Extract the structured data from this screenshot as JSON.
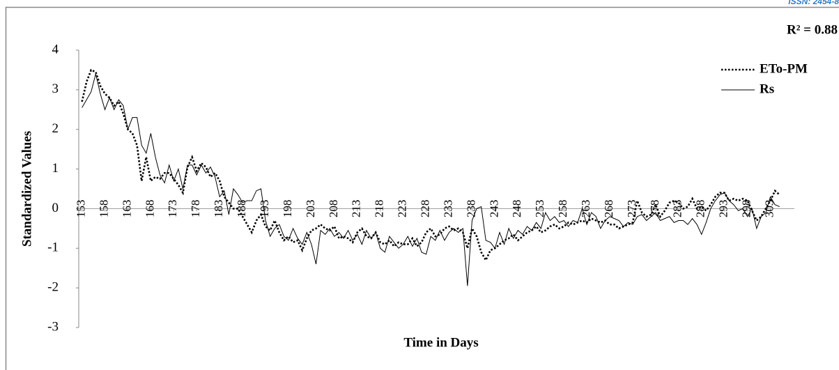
{
  "header": {
    "issn": "ISSN: 2454-8"
  },
  "chart_data": {
    "type": "line",
    "annotation": "R² = 0.88",
    "x_label": "Time in Days",
    "y_label": "Standardized Values",
    "x": [
      153,
      154,
      155,
      156,
      157,
      158,
      159,
      160,
      161,
      162,
      163,
      164,
      165,
      166,
      167,
      168,
      169,
      170,
      171,
      172,
      173,
      174,
      175,
      176,
      177,
      178,
      179,
      180,
      181,
      182,
      183,
      184,
      185,
      186,
      187,
      188,
      189,
      190,
      191,
      192,
      193,
      194,
      195,
      196,
      197,
      198,
      199,
      200,
      201,
      202,
      203,
      204,
      205,
      206,
      207,
      208,
      209,
      210,
      211,
      212,
      213,
      214,
      215,
      216,
      217,
      218,
      219,
      220,
      221,
      222,
      223,
      224,
      225,
      226,
      227,
      228,
      229,
      230,
      231,
      232,
      233,
      234,
      235,
      236,
      237,
      238,
      239,
      240,
      241,
      242,
      243,
      244,
      245,
      246,
      247,
      248,
      249,
      250,
      251,
      252,
      253,
      254,
      255,
      256,
      257,
      258,
      259,
      260,
      261,
      262,
      263,
      264,
      265,
      266,
      267,
      268,
      269,
      270,
      271,
      272,
      273,
      274,
      275,
      276,
      277,
      278,
      279,
      280,
      281,
      282,
      283,
      284,
      285,
      286,
      287,
      288,
      289,
      290,
      291,
      292,
      293,
      294,
      295,
      296,
      297,
      298,
      299,
      300,
      301,
      302,
      303,
      304,
      305
    ],
    "series": [
      {
        "name": "ETo-PM",
        "color": "#000000",
        "style": "dotted",
        "values": [
          2.7,
          3.2,
          3.5,
          3.45,
          3.1,
          2.9,
          2.8,
          2.6,
          2.7,
          2.4,
          2.0,
          1.9,
          1.6,
          0.7,
          1.3,
          0.7,
          0.8,
          0.75,
          0.9,
          0.9,
          0.75,
          0.6,
          0.4,
          1.05,
          1.3,
          0.95,
          1.15,
          1.05,
          0.8,
          0.9,
          0.7,
          0.3,
          0.15,
          0.0,
          0.0,
          -0.2,
          -0.4,
          -0.6,
          -0.3,
          -0.15,
          -0.45,
          -0.55,
          -0.3,
          -0.6,
          -0.8,
          -0.7,
          -0.85,
          -0.8,
          -1.05,
          -0.75,
          -0.55,
          -0.5,
          -0.4,
          -0.5,
          -0.55,
          -0.45,
          -0.75,
          -0.7,
          -0.75,
          -0.85,
          -0.6,
          -0.5,
          -0.7,
          -0.75,
          -0.6,
          -0.85,
          -0.9,
          -0.8,
          -0.95,
          -0.85,
          -0.9,
          -0.9,
          -0.75,
          -0.95,
          -0.85,
          -0.6,
          -0.5,
          -0.7,
          -0.65,
          -0.5,
          -0.45,
          -0.55,
          -0.5,
          -0.6,
          -1.0,
          -0.5,
          -0.7,
          -1.1,
          -1.3,
          -1.05,
          -1.0,
          -0.9,
          -0.8,
          -0.75,
          -0.65,
          -0.8,
          -0.7,
          -0.6,
          -0.55,
          -0.45,
          -0.6,
          -0.55,
          -0.45,
          -0.4,
          -0.5,
          -0.45,
          -0.35,
          -0.4,
          -0.35,
          -0.3,
          -0.35,
          -0.25,
          -0.3,
          -0.35,
          -0.3,
          -0.4,
          -0.4,
          -0.5,
          -0.45,
          -0.4,
          -0.35,
          0.2,
          -0.1,
          -0.2,
          -0.15,
          0.1,
          -0.2,
          -0.05,
          0.15,
          0.2,
          0.15,
          0.0,
          0.05,
          0.25,
          0.0,
          0.05,
          -0.05,
          0.1,
          0.3,
          0.4,
          0.4,
          0.2,
          0.25,
          0.2,
          0.25,
          0.2,
          -0.05,
          -0.3,
          -0.2,
          0.0,
          0.2,
          0.45,
          0.35
        ]
      },
      {
        "name": "Rs",
        "color": "#000000",
        "style": "solid",
        "values": [
          2.55,
          2.75,
          2.95,
          3.4,
          2.9,
          2.5,
          2.8,
          2.5,
          2.75,
          2.6,
          2.0,
          2.3,
          2.3,
          1.6,
          1.4,
          1.9,
          1.3,
          0.85,
          0.65,
          1.1,
          0.7,
          1.0,
          0.5,
          1.1,
          1.1,
          0.85,
          1.1,
          0.9,
          1.05,
          0.8,
          0.3,
          0.45,
          -0.15,
          0.5,
          0.35,
          0.15,
          0.2,
          0.2,
          0.45,
          0.5,
          -0.3,
          -0.7,
          -0.5,
          -0.4,
          -0.7,
          -0.8,
          -0.5,
          -0.75,
          -0.9,
          -0.6,
          -0.9,
          -1.4,
          -0.55,
          -0.65,
          -0.5,
          -0.7,
          -0.6,
          -0.75,
          -0.55,
          -0.8,
          -0.65,
          -0.9,
          -0.55,
          -0.75,
          -0.6,
          -1.0,
          -1.1,
          -0.7,
          -0.85,
          -1.0,
          -0.9,
          -0.7,
          -0.95,
          -0.75,
          -1.1,
          -1.15,
          -0.7,
          -0.8,
          -0.55,
          -0.8,
          -0.6,
          -0.5,
          -0.6,
          -0.5,
          -1.95,
          -0.3,
          0.0,
          0.05,
          -0.8,
          -0.85,
          -1.0,
          -0.6,
          -0.9,
          -0.5,
          -0.75,
          -0.55,
          -0.65,
          -0.45,
          -0.55,
          -0.35,
          -0.5,
          -0.1,
          -0.3,
          -0.2,
          -0.35,
          -0.3,
          -0.45,
          -0.3,
          -0.35,
          0.0,
          -0.4,
          -0.1,
          -0.2,
          -0.5,
          -0.3,
          -0.2,
          -0.25,
          -0.3,
          -0.45,
          -0.35,
          -0.4,
          -0.2,
          -0.15,
          -0.3,
          -0.2,
          -0.1,
          -0.3,
          -0.25,
          -0.2,
          -0.35,
          -0.3,
          -0.3,
          -0.4,
          -0.25,
          -0.4,
          -0.65,
          -0.35,
          0.0,
          0.2,
          0.35,
          0.4,
          0.2,
          0.1,
          -0.05,
          0.0,
          -0.2,
          0.0,
          -0.5,
          -0.2,
          -0.1,
          0.3,
          0.1,
          0.05
        ]
      }
    ],
    "xlim": [
      152.3,
      305.5
    ],
    "ylim": [
      -3,
      4
    ],
    "xticks": [
      153,
      158,
      163,
      168,
      173,
      178,
      183,
      188,
      193,
      198,
      203,
      208,
      213,
      218,
      223,
      228,
      233,
      238,
      243,
      248,
      253,
      258,
      263,
      268,
      273,
      278,
      283,
      288,
      293,
      298,
      303
    ],
    "yticks": [
      -3,
      -2,
      -1,
      0,
      1,
      2,
      3,
      4
    ],
    "legend": "upper right"
  }
}
